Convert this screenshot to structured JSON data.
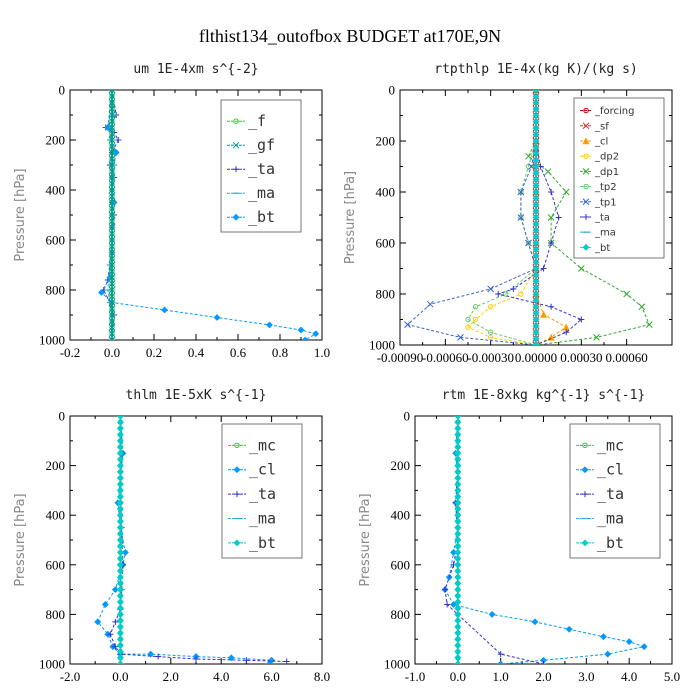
{
  "title": "flthist134_outofbox  BUDGET at170E,9N",
  "chart_data": [
    {
      "type": "line",
      "title": "um  1E-4xm s^{-2}",
      "ylabel": "Pressure [hPa]",
      "xlim": [
        -0.2,
        1.0
      ],
      "ylim": [
        1000,
        0
      ],
      "xticks": [
        "-0.2",
        "0.0",
        "0.2",
        "0.4",
        "0.6",
        "0.8",
        "1.0"
      ],
      "xtick_values": [
        -0.2,
        0.0,
        0.2,
        0.4,
        0.6,
        0.8,
        1.0
      ],
      "yticks": [
        "0",
        "200",
        "400",
        "600",
        "800",
        "1000"
      ],
      "ytick_values": [
        0,
        200,
        400,
        600,
        800,
        1000
      ],
      "legend": [
        "_f",
        "_gf",
        "_ta",
        "_ma",
        "_bt"
      ],
      "series": [
        {
          "name": "_f",
          "color": "#33cc33",
          "marker": "circle",
          "x": [
            0,
            0,
            0,
            0,
            0,
            0,
            0,
            0,
            0,
            0,
            0
          ],
          "y": [
            0,
            100,
            200,
            300,
            400,
            500,
            600,
            700,
            800,
            900,
            1000
          ]
        },
        {
          "name": "_gf",
          "color": "#009999",
          "marker": "x",
          "x": [
            0,
            0,
            0,
            0,
            0,
            0,
            0,
            0,
            0,
            0,
            0
          ],
          "y": [
            0,
            100,
            200,
            300,
            400,
            500,
            600,
            700,
            800,
            900,
            1000
          ]
        },
        {
          "name": "_ta",
          "color": "#3333cc",
          "marker": "plus",
          "x": [
            0.0,
            0.02,
            -0.03,
            0.01,
            0.03,
            0.0,
            -0.01,
            0.01,
            0.0,
            0.0,
            0.01,
            0.0,
            -0.01,
            -0.02,
            -0.04,
            -0.01,
            0.01,
            0.0
          ],
          "y": [
            0,
            100,
            150,
            170,
            200,
            250,
            300,
            350,
            400,
            450,
            500,
            600,
            700,
            760,
            800,
            850,
            900,
            1000
          ]
        },
        {
          "name": "_ma",
          "color": "#33aadd",
          "marker": "dash",
          "x": [
            0.0,
            0.01,
            -0.01,
            0.01,
            0.0,
            0.0,
            0.0,
            -0.01,
            -0.02,
            -0.01,
            0.0
          ],
          "y": [
            0,
            100,
            200,
            300,
            400,
            500,
            600,
            700,
            800,
            850,
            1000
          ]
        },
        {
          "name": "_bt",
          "color": "#0099ff",
          "marker": "diamond",
          "x": [
            0.0,
            -0.02,
            0.02,
            0.0,
            0.01,
            0.0,
            0.0,
            -0.01,
            -0.05,
            0.0,
            0.25,
            0.5,
            0.75,
            0.9,
            0.97,
            0.92
          ],
          "y": [
            0,
            150,
            250,
            350,
            450,
            550,
            650,
            750,
            810,
            850,
            880,
            910,
            940,
            960,
            975,
            1000
          ]
        }
      ]
    },
    {
      "type": "line",
      "title": "rtpthlp  1E-4x(kg K)/(kg s)",
      "ylabel": "Pressure [hPa]",
      "xlim": [
        -0.0009,
        0.0009
      ],
      "ylim": [
        1000,
        0
      ],
      "xticks": [
        "-0.00090",
        "-0.00060",
        "-0.00030",
        "0.00000",
        "0.00030",
        "0.00060"
      ],
      "xtick_values": [
        -0.0009,
        -0.0006,
        -0.0003,
        0.0,
        0.0003,
        0.0006
      ],
      "yticks": [
        "0",
        "200",
        "400",
        "600",
        "800",
        "1000"
      ],
      "ytick_values": [
        0,
        200,
        400,
        600,
        800,
        1000
      ],
      "legend": [
        "_forcing",
        "_sf",
        "_cl",
        "_dp2",
        "_dp1",
        "_tp2",
        "_tp1",
        "_ta",
        "_ma",
        "_bt"
      ],
      "series": [
        {
          "name": "_forcing",
          "color": "#cc0000",
          "marker": "circle",
          "x": [
            0,
            0,
            0,
            0,
            0,
            0,
            0,
            0,
            0,
            0,
            0
          ],
          "y": [
            0,
            100,
            200,
            300,
            400,
            500,
            600,
            700,
            800,
            900,
            1000
          ]
        },
        {
          "name": "_sf",
          "color": "#cc3333",
          "marker": "x",
          "x": [
            0,
            0,
            0,
            0,
            0,
            0,
            0,
            0,
            0,
            0,
            0
          ],
          "y": [
            0,
            100,
            200,
            300,
            400,
            500,
            600,
            700,
            800,
            900,
            1000
          ]
        },
        {
          "name": "_cl",
          "color": "#ff9900",
          "marker": "triangle",
          "x": [
            0,
            0,
            0,
            0,
            0,
            0,
            5e-05,
            0.0002,
            0.0001,
            0
          ],
          "y": [
            0,
            200,
            400,
            600,
            700,
            800,
            880,
            930,
            970,
            1000
          ]
        },
        {
          "name": "_dp2",
          "color": "#ffcc00",
          "marker": "circle",
          "x": [
            0,
            0,
            0,
            0,
            0,
            -0.0001,
            -0.0003,
            -0.0004,
            -0.00045,
            -0.0003,
            0
          ],
          "y": [
            0,
            200,
            400,
            600,
            700,
            800,
            850,
            900,
            930,
            970,
            1000
          ]
        },
        {
          "name": "_dp1",
          "color": "#33aa33",
          "marker": "x",
          "x": [
            0,
            0,
            -5e-05,
            8e-05,
            0.0002,
            0.0001,
            0.0001,
            0.0003,
            0.0006,
            0.0007,
            0.00075,
            0.0004,
            0
          ],
          "y": [
            0,
            200,
            260,
            320,
            400,
            500,
            600,
            700,
            800,
            850,
            920,
            970,
            1000
          ]
        },
        {
          "name": "_tp2",
          "color": "#66cc66",
          "marker": "circle",
          "x": [
            0,
            0,
            -5e-05,
            -0.0001,
            -0.0001,
            -5e-05,
            0,
            -0.0002,
            -0.0004,
            -0.00045,
            -0.0003,
            0
          ],
          "y": [
            0,
            200,
            300,
            400,
            500,
            600,
            700,
            800,
            850,
            900,
            950,
            1000
          ]
        },
        {
          "name": "_tp1",
          "color": "#3366cc",
          "marker": "x",
          "x": [
            0,
            0,
            -3e-05,
            -0.0001,
            -0.0001,
            -5e-05,
            0,
            -0.0003,
            -0.0007,
            -0.00085,
            -0.0005,
            0
          ],
          "y": [
            0,
            200,
            300,
            400,
            500,
            600,
            700,
            780,
            840,
            920,
            970,
            1000
          ]
        },
        {
          "name": "_ta",
          "color": "#3333cc",
          "marker": "plus",
          "x": [
            0,
            0,
            3e-05,
            0.0001,
            0.00015,
            0.0001,
            5e-05,
            -0.00015,
            -0.00025,
            0.0001,
            0.0003,
            0.0002,
            0
          ],
          "y": [
            0,
            200,
            300,
            400,
            500,
            600,
            700,
            780,
            800,
            850,
            900,
            950,
            1000
          ]
        },
        {
          "name": "_ma",
          "color": "#33aadd",
          "marker": "dash",
          "x": [
            0,
            0,
            0,
            0,
            0,
            0,
            0,
            0,
            0,
            0,
            0
          ],
          "y": [
            0,
            100,
            200,
            300,
            400,
            500,
            600,
            700,
            800,
            900,
            1000
          ]
        },
        {
          "name": "_bt",
          "color": "#00cccc",
          "marker": "diamond",
          "x": [
            0,
            0,
            0,
            0,
            0,
            0,
            0,
            0,
            0,
            0,
            0
          ],
          "y": [
            0,
            100,
            200,
            300,
            400,
            500,
            600,
            700,
            800,
            900,
            1000
          ]
        }
      ]
    },
    {
      "type": "line",
      "title": "thlm  1E-5xK s^{-1}",
      "ylabel": "Pressure [hPa]",
      "xlim": [
        -2.0,
        8.0
      ],
      "ylim": [
        1000,
        0
      ],
      "xticks": [
        "-2.0",
        "0.0",
        "2.0",
        "4.0",
        "6.0",
        "8.0"
      ],
      "xtick_values": [
        -2.0,
        0.0,
        2.0,
        4.0,
        6.0,
        8.0
      ],
      "yticks": [
        "0",
        "200",
        "400",
        "600",
        "800",
        "1000"
      ],
      "ytick_values": [
        0,
        200,
        400,
        600,
        800,
        1000
      ],
      "legend": [
        "_mc",
        "_cl",
        "_ta",
        "_ma",
        "_bt"
      ],
      "series": [
        {
          "name": "_mc",
          "color": "#33cc33",
          "marker": "circle",
          "x": [
            0,
            0,
            0,
            0,
            0,
            0,
            0,
            0,
            0,
            0,
            0
          ],
          "y": [
            0,
            100,
            200,
            300,
            400,
            500,
            600,
            700,
            800,
            900,
            1000
          ]
        },
        {
          "name": "_cl",
          "color": "#0099ff",
          "marker": "diamond",
          "x": [
            0.0,
            0.1,
            0.0,
            -0.1,
            0.0,
            0.2,
            0.1,
            -0.2,
            -0.6,
            -0.9,
            -0.5,
            -0.3,
            0.0,
            1.2,
            3.0,
            4.4,
            6.0,
            5.9
          ],
          "y": [
            0,
            150,
            250,
            350,
            450,
            550,
            600,
            700,
            760,
            830,
            880,
            930,
            960,
            960,
            970,
            975,
            985,
            1000
          ]
        },
        {
          "name": "_ta",
          "color": "#3333cc",
          "marker": "plus",
          "x": [
            0.0,
            0.05,
            0.0,
            0.05,
            0.1,
            0.05,
            0.0,
            -0.2,
            -0.4,
            -0.2,
            0.0,
            1.5,
            3.0,
            5.0,
            6.6
          ],
          "y": [
            0,
            150,
            300,
            450,
            600,
            700,
            780,
            830,
            880,
            930,
            960,
            970,
            980,
            985,
            990
          ]
        },
        {
          "name": "_ma",
          "color": "#33aadd",
          "marker": "dash",
          "x": [
            0,
            0,
            0,
            0,
            0,
            0,
            0,
            0,
            0,
            0,
            0
          ],
          "y": [
            0,
            100,
            200,
            300,
            400,
            500,
            600,
            700,
            800,
            900,
            1000
          ]
        },
        {
          "name": "_bt",
          "color": "#00cccc",
          "marker": "diamond",
          "x": [
            0,
            0,
            0,
            0,
            0,
            0,
            0,
            0,
            0,
            0,
            0
          ],
          "y": [
            0,
            100,
            200,
            300,
            400,
            500,
            600,
            700,
            800,
            900,
            1000
          ]
        }
      ]
    },
    {
      "type": "line",
      "title": "rtm  1E-8xkg kg^{-1} s^{-1}",
      "ylabel": "Pressure [hPa]",
      "xlim": [
        -1.0,
        5.0
      ],
      "ylim": [
        1000,
        0
      ],
      "xticks": [
        "-1.0",
        "0.0",
        "1.0",
        "2.0",
        "3.0",
        "4.0",
        "5.0"
      ],
      "xtick_values": [
        -1.0,
        0.0,
        1.0,
        2.0,
        3.0,
        4.0,
        5.0
      ],
      "yticks": [
        "0",
        "200",
        "400",
        "600",
        "800",
        "1000"
      ],
      "ytick_values": [
        0,
        200,
        400,
        600,
        800,
        1000
      ],
      "legend": [
        "_mc",
        "_cl",
        "_ta",
        "_ma",
        "_bt"
      ],
      "series": [
        {
          "name": "_mc",
          "color": "#33cc33",
          "marker": "circle",
          "x": [
            0,
            0,
            0,
            0,
            0,
            0,
            0,
            0,
            0,
            0,
            0
          ],
          "y": [
            0,
            100,
            200,
            300,
            400,
            500,
            600,
            700,
            800,
            900,
            1000
          ]
        },
        {
          "name": "_cl",
          "color": "#0099ff",
          "marker": "diamond",
          "x": [
            0.0,
            -0.05,
            0.0,
            -0.05,
            0.0,
            -0.1,
            -0.2,
            -0.3,
            -0.1,
            0.8,
            1.8,
            2.6,
            3.4,
            4.0,
            4.35,
            3.5,
            2.0,
            1.0
          ],
          "y": [
            0,
            150,
            250,
            350,
            450,
            550,
            650,
            700,
            760,
            800,
            830,
            860,
            890,
            910,
            930,
            960,
            985,
            1000
          ]
        },
        {
          "name": "_ta",
          "color": "#3333cc",
          "marker": "plus",
          "x": [
            0.0,
            0.0,
            -0.05,
            0.0,
            -0.1,
            -0.3,
            -0.25,
            0.0,
            1.0,
            2.0
          ],
          "y": [
            0,
            200,
            350,
            500,
            600,
            700,
            760,
            800,
            960,
            1000
          ]
        },
        {
          "name": "_ma",
          "color": "#33aadd",
          "marker": "dash",
          "x": [
            0,
            0,
            0,
            0,
            0,
            0,
            0,
            0,
            0,
            0,
            0
          ],
          "y": [
            0,
            100,
            200,
            300,
            400,
            500,
            600,
            700,
            800,
            900,
            1000
          ]
        },
        {
          "name": "_bt",
          "color": "#00cccc",
          "marker": "diamond",
          "x": [
            0,
            0,
            0,
            0,
            0,
            0,
            0,
            0,
            0,
            0,
            0
          ],
          "y": [
            0,
            100,
            200,
            300,
            400,
            500,
            600,
            700,
            800,
            900,
            1000
          ]
        }
      ]
    }
  ]
}
